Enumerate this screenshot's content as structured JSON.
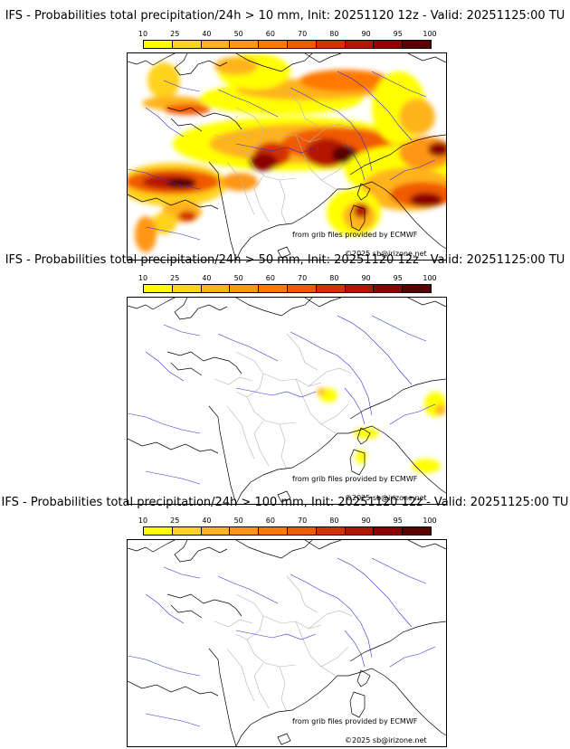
{
  "panels": [
    {
      "title": "IFS - Probabilities total precipitation/24h > 10 mm, Init: 20251120 12z - Valid: 20251125:00 TU"
    },
    {
      "title": "IFS - Probabilities total precipitation/24h > 50 mm, Init: 20251120 12z - Valid: 20251125:00 TU"
    },
    {
      "title": "IFS - Probabilities total precipitation/24h > 100 mm, Init: 20251120 12z - Valid: 20251125:00 TU"
    }
  ],
  "colorbar": {
    "ticks": [
      "10",
      "25",
      "40",
      "50",
      "60",
      "70",
      "80",
      "90",
      "95",
      "100"
    ],
    "colors": [
      "#ffff00",
      "#ffd21e",
      "#ffb41e",
      "#ff9614",
      "#ff7800",
      "#f05a00",
      "#d23200",
      "#b41400",
      "#8c0000",
      "#5a0000"
    ]
  },
  "credits": {
    "grib": "from grib files provided by ECMWF",
    "copyright": "©2025 sb@irizone.net"
  },
  "map_colors": {
    "coast": "#000000",
    "rivers": "#3333cc",
    "regions": "#b4b4b4"
  }
}
